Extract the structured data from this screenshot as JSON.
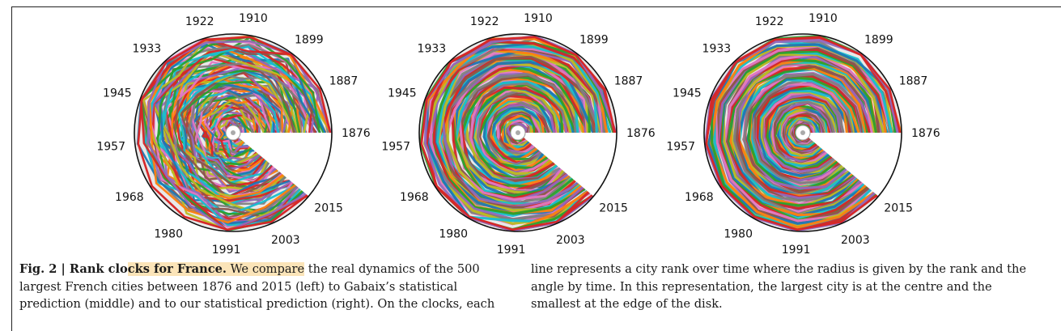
{
  "chart_data": [
    {
      "type": "polar-line",
      "theta_labels": [
        "1876",
        "1887",
        "1899",
        "1910",
        "1922",
        "1933",
        "1945",
        "1957",
        "1968",
        "1980",
        "1991",
        "2003",
        "2015"
      ],
      "panel": "left"
    },
    {
      "type": "polar-line",
      "theta_labels": [
        "1876",
        "1887",
        "1899",
        "1910",
        "1922",
        "1933",
        "1945",
        "1957",
        "1968",
        "1980",
        "1991",
        "2003",
        "2015"
      ],
      "panel": "middle"
    },
    {
      "type": "polar-line",
      "theta_labels": [
        "1876",
        "1887",
        "1899",
        "1910",
        "1922",
        "1933",
        "1945",
        "1957",
        "1968",
        "1980",
        "1991",
        "2003",
        "2015"
      ],
      "panel": "right"
    }
  ],
  "caption": {
    "fig_label": "Fig. 2 | ",
    "title_part1": "Rank clo",
    "title_part2": "cks for France.",
    "text_highlight": " We compare",
    "text_col1_rest": " the real dynamics of the 500 largest French cities between 1876 and 2015 (left) to Gabaix’s statistical prediction (middle) and to our statistical prediction (right). On the clocks, each",
    "text_col2": "line represents a city rank over time where the radius is given by the rank and the angle by time. In this representation, the largest city is at the centre and the smallest at the edge of the disk."
  },
  "colors": {
    "palette": [
      "#1f77b4",
      "#ff7f0e",
      "#2ca02c",
      "#d62728",
      "#9467bd",
      "#8c564b",
      "#e377c2",
      "#7f7f7f",
      "#bcbd22",
      "#17becf"
    ],
    "highlight": "#fbe4b8"
  }
}
